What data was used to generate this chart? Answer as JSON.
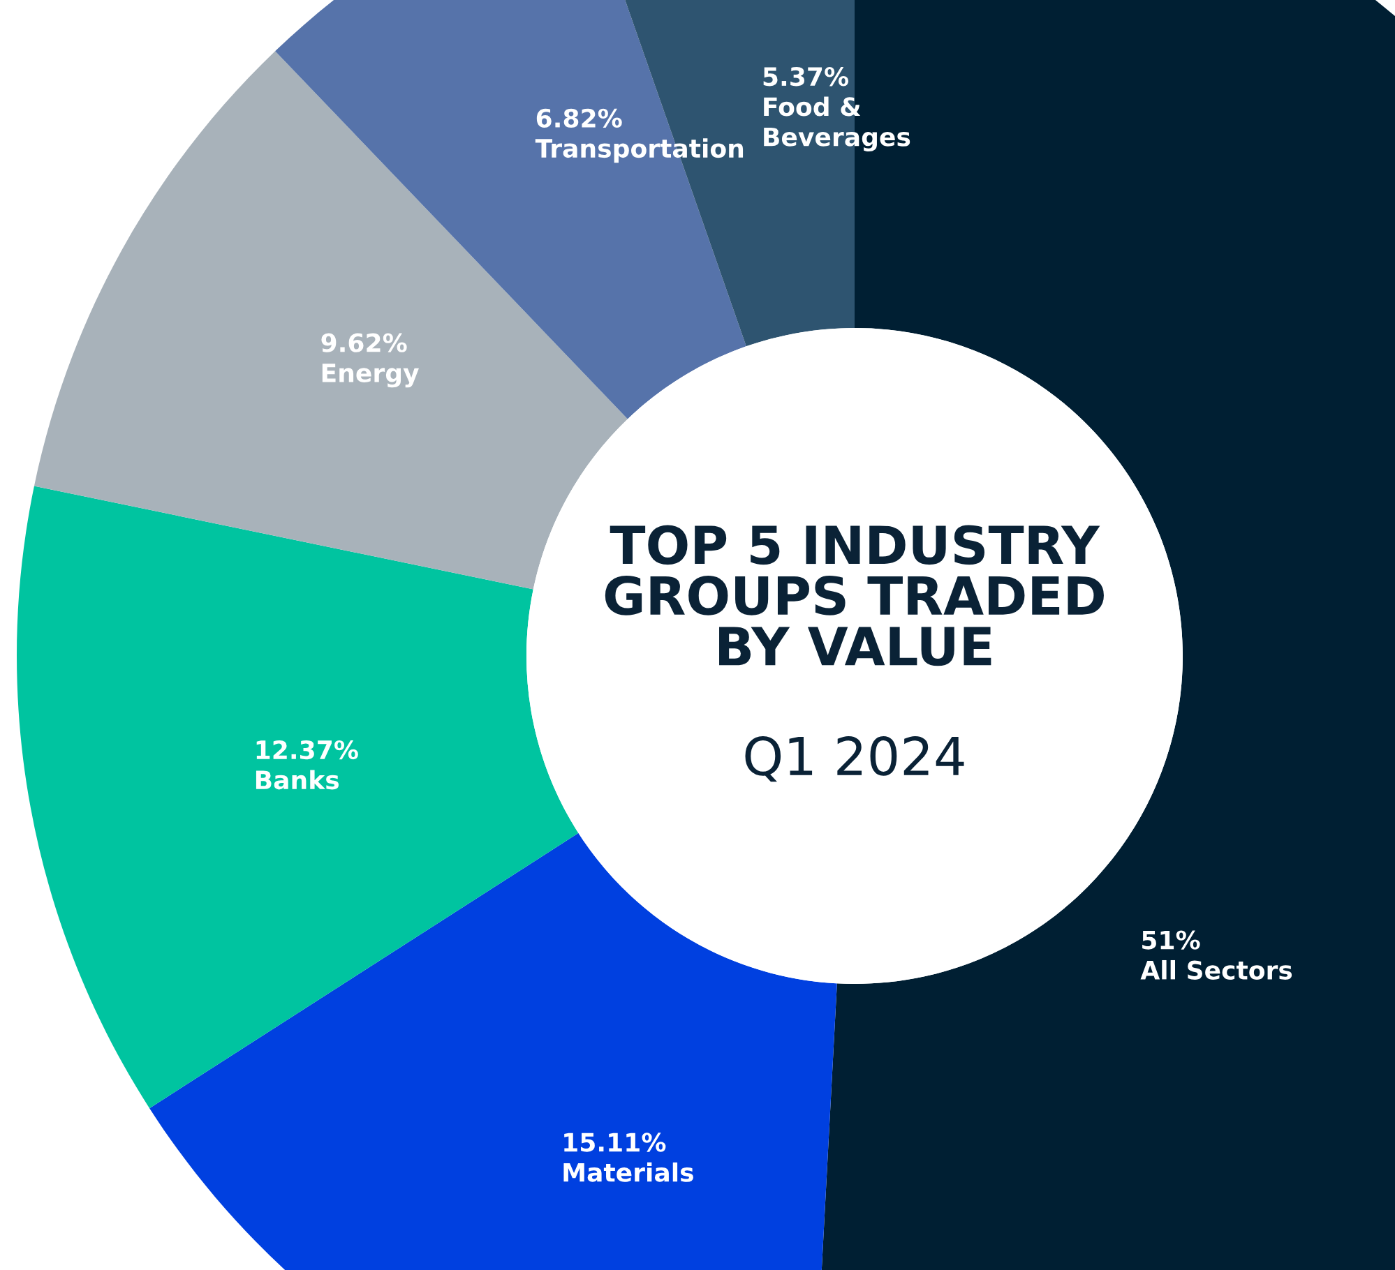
{
  "chart_data": {
    "type": "donut",
    "title": "TOP 5 INDUSTRY GROUPS TRADED BY VALUE",
    "subtitle": "Q1 2024",
    "categories": [
      "All Sectors",
      "Materials",
      "Banks",
      "Energy",
      "Transportation",
      "Food & Beverages"
    ],
    "values": [
      51,
      15.11,
      12.37,
      9.62,
      6.82,
      5.37
    ],
    "colors": [
      "#001f33",
      "#0040e0",
      "#00c4a0",
      "#a8b2ba",
      "#5673aa",
      "#2e5470"
    ],
    "value_labels": [
      "51%",
      "15.11%",
      "12.37%",
      "9.62%",
      "6.82%",
      "5.37%"
    ],
    "legend": false
  }
}
